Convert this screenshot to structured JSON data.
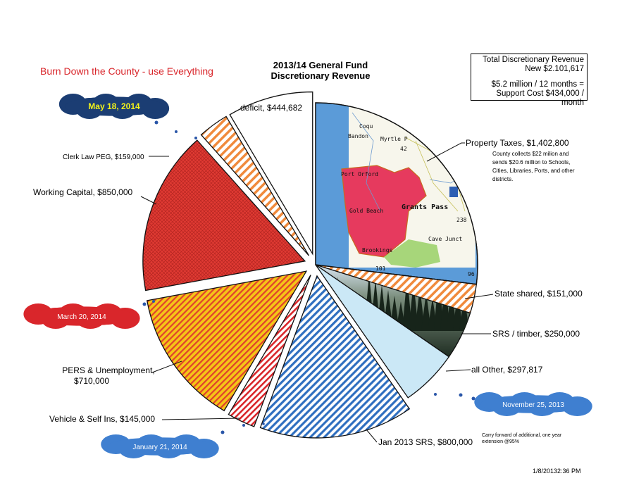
{
  "header": {
    "title_line1": "2013/14 General Fund",
    "title_line2": "Discretionary Revenue",
    "headline": "Burn Down the County - use Everything"
  },
  "infobox": {
    "line1": "Total Discretionary Revenue",
    "line2": "New $2.101,617",
    "line3": "$5.2 million / 12 months =",
    "line4": "Support Cost $434,000 / month"
  },
  "notes": {
    "property": "County collects $22 milion and sends $20.6 million to Schools, Cities, Libraries, Ports, and other districts.",
    "carry_forward": "Carry forward of additional, one year extension @95%",
    "timestamp": "1/8/20132:36 PM"
  },
  "clouds": [
    {
      "text": "May 18, 2014",
      "color": "#1b3d73",
      "text_style": "bold-yellow"
    },
    {
      "text": "March 20, 2014",
      "color": "#d9262b",
      "text_style": "white"
    },
    {
      "text": "January 21, 2014",
      "color": "#3f7fd0",
      "text_style": "white"
    },
    {
      "text": "November 25, 2013",
      "color": "#3f7fd0",
      "text_style": "white"
    }
  ],
  "map_labels": [
    "Coqu",
    "Bandon",
    "Myrtle P",
    "42",
    "Port Orford",
    "Gold Beach",
    "Grants Pass",
    "238",
    "Cave Junct",
    "Brookings",
    "101",
    "96"
  ],
  "chart_data": {
    "type": "pie",
    "title": "2013/14 General Fund Discretionary Revenue",
    "slices": [
      {
        "label": "Property Taxes,  $1,402,800",
        "value": 1402800,
        "fill": "map",
        "exploded": false
      },
      {
        "label": "State shared,  $151,000",
        "value": 151000,
        "fill": "stripe-orange",
        "exploded": false
      },
      {
        "label": "SRS / timber,  $250,000",
        "value": 250000,
        "fill": "forest",
        "exploded": false
      },
      {
        "label": "all Other,  $297,817",
        "value": 297817,
        "fill": "#cbe8f6",
        "exploded": false
      },
      {
        "label": "Jan 2013 SRS,  $800,000",
        "value": 800000,
        "fill": "stripe-blue",
        "exploded": true
      },
      {
        "label": "Vehicle & Self Ins,  $145,000",
        "value": 145000,
        "fill": "stripe-red",
        "exploded": true
      },
      {
        "label": "PERS & Unemployment, $710,000",
        "value": 710000,
        "fill": "stripe-yellow-red",
        "exploded": true
      },
      {
        "label": "Working Capital,  $850,000",
        "value": 850000,
        "fill": "crosshatch-red",
        "exploded": true
      },
      {
        "label": "Clerk Law PEG,  $159,000",
        "value": 159000,
        "fill": "stripe-orange",
        "exploded": true
      },
      {
        "label": "deficit,  $444,682",
        "value": 444682,
        "fill": "#ffffff",
        "exploded": true
      }
    ],
    "colors": {
      "outline": "#111111",
      "map_sea": "#5b9bd8",
      "map_county": "#e63a5e",
      "map_green": "#a7d67a",
      "stripe_blue": "#2f6fc0",
      "stripe_red": "#d9262b",
      "stripe_orange": "#f08a3c",
      "stripe_yellow": "#f5c518",
      "crosshatch_red": "#e03a33"
    }
  }
}
